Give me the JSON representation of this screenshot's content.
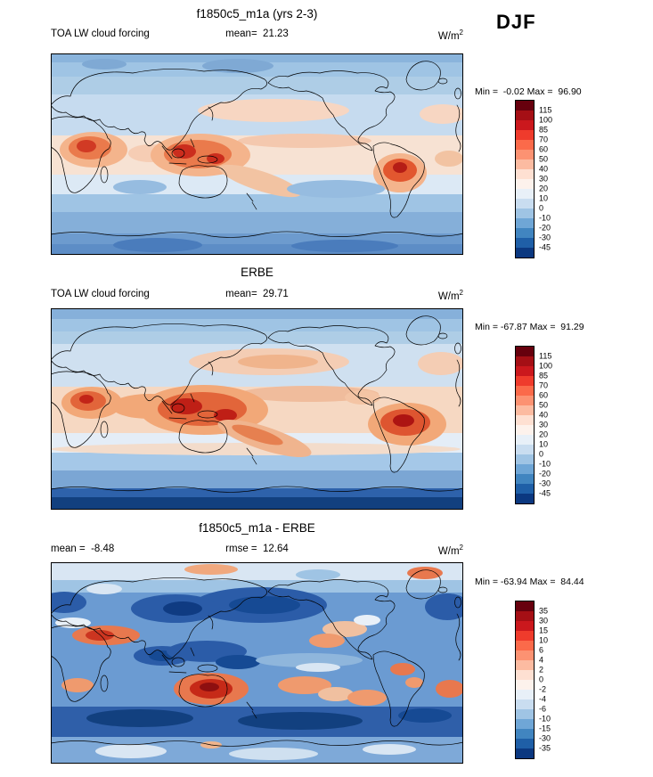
{
  "header": {
    "season": "DJF"
  },
  "panels": [
    {
      "title": "f1850c5_m1a (yrs 2-3)",
      "left_label": "TOA LW cloud forcing",
      "center_label": "mean=  21.23",
      "units": "W/m",
      "units_sup": "2",
      "minmax": "Min =  -0.02 Max =  96.90",
      "colorbar": "standard"
    },
    {
      "title": "ERBE",
      "left_label": "TOA LW cloud forcing",
      "center_label": "mean=  29.71",
      "units": "W/m",
      "units_sup": "2",
      "minmax": "Min = -67.87 Max =  91.29",
      "colorbar": "standard"
    },
    {
      "title": "f1850c5_m1a - ERBE",
      "left_label": "mean =  -8.48",
      "center_label": "rmse =  12.64",
      "units": "W/m",
      "units_sup": "2",
      "minmax": "Min = -63.94 Max =  84.44",
      "colorbar": "difference"
    }
  ],
  "colorbars": {
    "standard": {
      "labels": [
        "115",
        "100",
        "85",
        "70",
        "60",
        "50",
        "40",
        "30",
        "20",
        "10",
        "0",
        "-10",
        "-20",
        "-30",
        "-45"
      ],
      "colors": [
        "#67000d",
        "#a50f15",
        "#cb181d",
        "#ef3b2c",
        "#fb6a4a",
        "#fc9272",
        "#fcbba1",
        "#fee0d2",
        "#fdf2ec",
        "#e8f0f8",
        "#c9ddf0",
        "#9fc4e4",
        "#6fa6d6",
        "#4185c0",
        "#1f5fa7",
        "#0b3880"
      ]
    },
    "difference": {
      "labels": [
        "35",
        "30",
        "15",
        "10",
        "6",
        "4",
        "2",
        "0",
        "-2",
        "-4",
        "-6",
        "-10",
        "-15",
        "-30",
        "-35"
      ],
      "colors": [
        "#67000d",
        "#a50f15",
        "#cb181d",
        "#ef3b2c",
        "#fb6a4a",
        "#fc9272",
        "#fcbba1",
        "#fee0d2",
        "#fdf2ec",
        "#e8f0f8",
        "#c9ddf0",
        "#9fc4e4",
        "#6fa6d6",
        "#4185c0",
        "#1f5fa7",
        "#0b3880"
      ]
    }
  },
  "chart_data": [
    {
      "type": "heatmap",
      "subtype": "filled-contour global lat-lon map",
      "title": "f1850c5_m1a (yrs 2-3)",
      "variable": "TOA LW cloud forcing",
      "season": "DJF",
      "units": "W/m^2",
      "mean": 21.23,
      "min": -0.02,
      "max": 96.9,
      "contour_levels": [
        -45,
        -30,
        -20,
        -10,
        0,
        10,
        20,
        30,
        40,
        50,
        60,
        70,
        85,
        100,
        115
      ],
      "palette": "blue-white-red diverging",
      "high_value_regions": [
        "central Africa",
        "Maritime Continent / western tropical Pacific",
        "Amazon basin South America",
        "SPCZ"
      ],
      "low_value_regions": [
        "polar oceans",
        "subtropical ocean basins",
        "Southern Ocean"
      ]
    },
    {
      "type": "heatmap",
      "subtype": "filled-contour global lat-lon map",
      "title": "ERBE",
      "variable": "TOA LW cloud forcing",
      "season": "DJF",
      "units": "W/m^2",
      "mean": 29.71,
      "min": -67.87,
      "max": 91.29,
      "contour_levels": [
        -45,
        -30,
        -20,
        -10,
        0,
        10,
        20,
        30,
        40,
        50,
        60,
        70,
        85,
        100,
        115
      ],
      "palette": "blue-white-red diverging",
      "high_value_regions": [
        "Maritime Continent / western tropical Pacific",
        "South America and tropical Atlantic",
        "central Africa",
        "SPCZ"
      ],
      "low_value_regions": [
        "Antarctic coast (strong negative)",
        "polar oceans"
      ]
    },
    {
      "type": "heatmap",
      "subtype": "filled-contour global lat-lon difference map",
      "title": "f1850c5_m1a - ERBE",
      "variable": "TOA LW cloud forcing difference (model minus obs)",
      "season": "DJF",
      "units": "W/m^2",
      "mean": -8.48,
      "rmse": 12.64,
      "min": -63.94,
      "max": 84.44,
      "contour_levels": [
        -35,
        -30,
        -15,
        -10,
        -6,
        -4,
        -2,
        0,
        2,
        4,
        6,
        10,
        15,
        30,
        35
      ],
      "palette": "blue-white-red diverging",
      "high_value_regions": [
        "Australia",
        "North Africa / Arabia",
        "subtropical southeast Pacific",
        "South Atlantic"
      ],
      "low_value_regions": [
        "North Pacific",
        "central Asia",
        "Southern Ocean",
        "tropical Indian Ocean",
        "western Pacific"
      ]
    }
  ]
}
